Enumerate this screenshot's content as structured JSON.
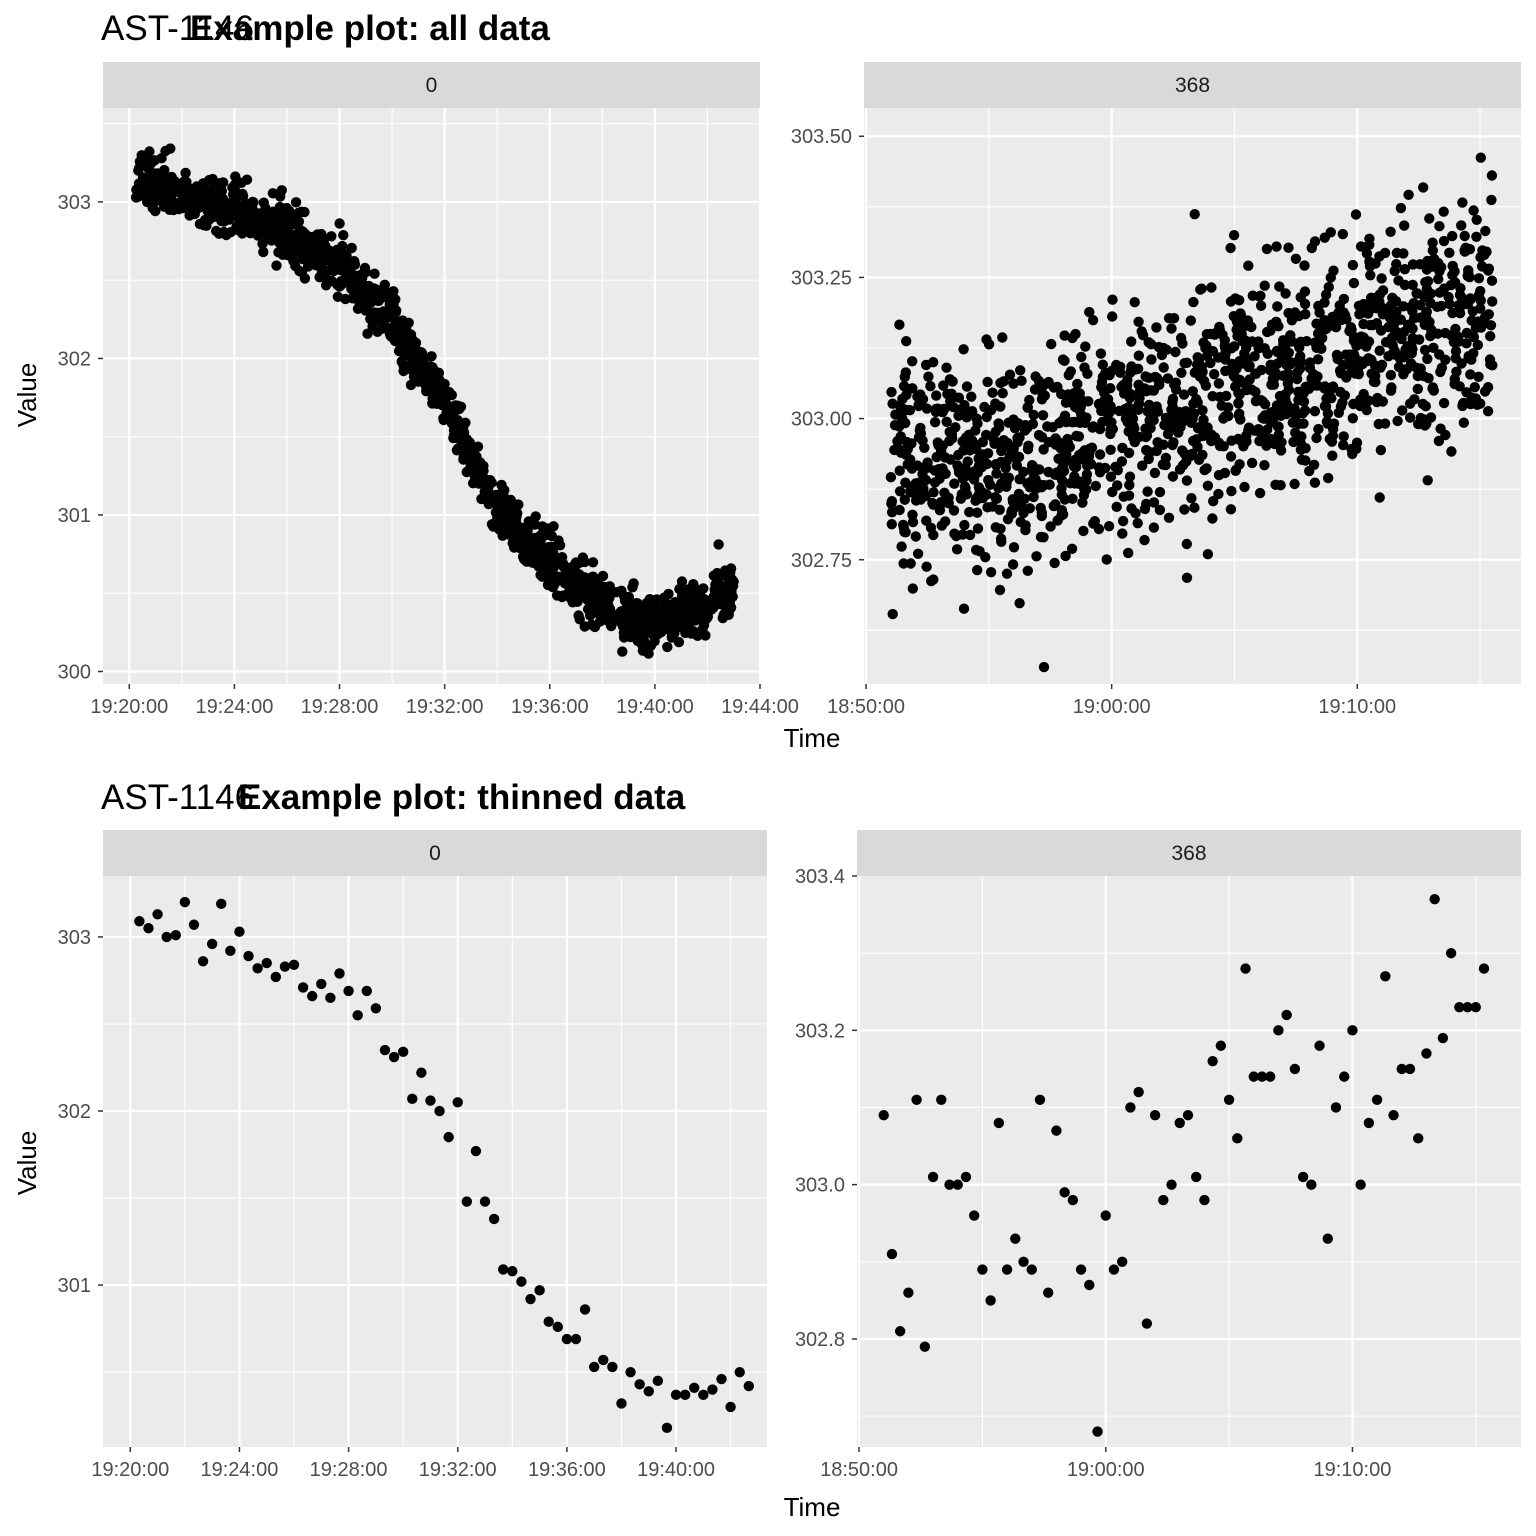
{
  "figures": [
    {
      "prefix": "AST-1146",
      "title": "Example plot: all data",
      "xlabel": "Time",
      "ylabel": "Value"
    },
    {
      "prefix": "AST-1146",
      "title": "Example plot: thinned data",
      "xlabel": "Time",
      "ylabel": "Value"
    }
  ],
  "chart_data": [
    {
      "type": "scatter",
      "figure": "Example plot: all data",
      "facet": "0",
      "x_unit": "time (HH:MM:SS)",
      "xlim": [
        "19:19:00",
        "19:44:00"
      ],
      "ylim": [
        299.92,
        303.6
      ],
      "x_ticks": [
        "19:20:00",
        "19:24:00",
        "19:28:00",
        "19:32:00",
        "19:36:00",
        "19:40:00",
        "19:44:00"
      ],
      "y_ticks": [
        "300",
        "301",
        "302",
        "303"
      ],
      "trend_points": [
        {
          "x": "19:20:15",
          "y": 303.15
        },
        {
          "x": "19:22:00",
          "y": 303.05
        },
        {
          "x": "19:24:00",
          "y": 302.95
        },
        {
          "x": "19:26:00",
          "y": 302.8
        },
        {
          "x": "19:28:00",
          "y": 302.6
        },
        {
          "x": "19:30:00",
          "y": 302.25
        },
        {
          "x": "19:31:00",
          "y": 302.0
        },
        {
          "x": "19:32:00",
          "y": 301.7
        },
        {
          "x": "19:33:00",
          "y": 301.35
        },
        {
          "x": "19:34:00",
          "y": 301.05
        },
        {
          "x": "19:35:00",
          "y": 300.85
        },
        {
          "x": "19:36:00",
          "y": 300.7
        },
        {
          "x": "19:38:00",
          "y": 300.45
        },
        {
          "x": "19:39:30",
          "y": 300.3
        },
        {
          "x": "19:41:00",
          "y": 300.35
        },
        {
          "x": "19:42:00",
          "y": 300.45
        },
        {
          "x": "19:43:00",
          "y": 300.55
        }
      ],
      "n_points": 1400,
      "grid": true
    },
    {
      "type": "scatter",
      "figure": "Example plot: all data",
      "facet": "368",
      "x_unit": "time (HH:MM:SS)",
      "xlim": [
        "18:49:55",
        "19:16:40"
      ],
      "ylim": [
        302.53,
        303.55
      ],
      "x_ticks": [
        "18:50:00",
        "19:00:00",
        "19:10:00"
      ],
      "y_ticks": [
        "302.75",
        "303.00",
        "303.25",
        "303.50"
      ],
      "trend_points": [
        {
          "x": "18:51:00",
          "y": 302.93
        },
        {
          "x": "18:57:00",
          "y": 302.92
        },
        {
          "x": "19:00:00",
          "y": 302.98
        },
        {
          "x": "19:05:00",
          "y": 303.05
        },
        {
          "x": "19:10:00",
          "y": 303.12
        },
        {
          "x": "19:15:30",
          "y": 303.2
        }
      ],
      "n_points": 1400,
      "grid": true
    },
    {
      "type": "scatter",
      "figure": "Example plot: thinned data",
      "facet": "0",
      "x_unit": "time (HH:MM:SS)",
      "xlim": [
        "19:19:00",
        "19:43:20"
      ],
      "ylim": [
        300.07,
        303.35
      ],
      "x_ticks": [
        "19:20:00",
        "19:24:00",
        "19:28:00",
        "19:32:00",
        "19:36:00",
        "19:40:00"
      ],
      "y_ticks": [
        "301",
        "302",
        "303"
      ],
      "points": [
        {
          "x": "19:20:20",
          "y": 303.09
        },
        {
          "x": "19:20:40",
          "y": 303.05
        },
        {
          "x": "19:21:00",
          "y": 303.13
        },
        {
          "x": "19:21:20",
          "y": 303.0
        },
        {
          "x": "19:21:40",
          "y": 303.01
        },
        {
          "x": "19:22:00",
          "y": 303.2
        },
        {
          "x": "19:22:20",
          "y": 303.07
        },
        {
          "x": "19:22:40",
          "y": 302.86
        },
        {
          "x": "19:23:00",
          "y": 302.96
        },
        {
          "x": "19:23:20",
          "y": 303.19
        },
        {
          "x": "19:23:40",
          "y": 302.92
        },
        {
          "x": "19:24:00",
          "y": 303.03
        },
        {
          "x": "19:24:20",
          "y": 302.89
        },
        {
          "x": "19:24:40",
          "y": 302.82
        },
        {
          "x": "19:25:00",
          "y": 302.85
        },
        {
          "x": "19:25:20",
          "y": 302.77
        },
        {
          "x": "19:25:40",
          "y": 302.83
        },
        {
          "x": "19:26:00",
          "y": 302.84
        },
        {
          "x": "19:26:20",
          "y": 302.71
        },
        {
          "x": "19:26:40",
          "y": 302.66
        },
        {
          "x": "19:27:00",
          "y": 302.73
        },
        {
          "x": "19:27:20",
          "y": 302.65
        },
        {
          "x": "19:27:40",
          "y": 302.79
        },
        {
          "x": "19:28:00",
          "y": 302.69
        },
        {
          "x": "19:28:20",
          "y": 302.55
        },
        {
          "x": "19:28:40",
          "y": 302.69
        },
        {
          "x": "19:29:00",
          "y": 302.59
        },
        {
          "x": "19:29:20",
          "y": 302.35
        },
        {
          "x": "19:29:40",
          "y": 302.31
        },
        {
          "x": "19:30:00",
          "y": 302.34
        },
        {
          "x": "19:30:20",
          "y": 302.07
        },
        {
          "x": "19:30:40",
          "y": 302.22
        },
        {
          "x": "19:31:00",
          "y": 302.06
        },
        {
          "x": "19:31:20",
          "y": 302.0
        },
        {
          "x": "19:31:40",
          "y": 301.85
        },
        {
          "x": "19:32:00",
          "y": 302.05
        },
        {
          "x": "19:32:20",
          "y": 301.48
        },
        {
          "x": "19:32:40",
          "y": 301.77
        },
        {
          "x": "19:33:00",
          "y": 301.48
        },
        {
          "x": "19:33:20",
          "y": 301.38
        },
        {
          "x": "19:33:40",
          "y": 301.09
        },
        {
          "x": "19:34:00",
          "y": 301.08
        },
        {
          "x": "19:34:20",
          "y": 301.02
        },
        {
          "x": "19:34:40",
          "y": 300.92
        },
        {
          "x": "19:35:00",
          "y": 300.97
        },
        {
          "x": "19:35:20",
          "y": 300.79
        },
        {
          "x": "19:35:40",
          "y": 300.76
        },
        {
          "x": "19:36:00",
          "y": 300.69
        },
        {
          "x": "19:36:20",
          "y": 300.69
        },
        {
          "x": "19:36:40",
          "y": 300.86
        },
        {
          "x": "19:37:00",
          "y": 300.53
        },
        {
          "x": "19:37:20",
          "y": 300.57
        },
        {
          "x": "19:37:40",
          "y": 300.53
        },
        {
          "x": "19:38:00",
          "y": 300.32
        },
        {
          "x": "19:38:20",
          "y": 300.5
        },
        {
          "x": "19:38:40",
          "y": 300.43
        },
        {
          "x": "19:39:00",
          "y": 300.39
        },
        {
          "x": "19:39:20",
          "y": 300.45
        },
        {
          "x": "19:39:40",
          "y": 300.18
        },
        {
          "x": "19:40:00",
          "y": 300.37
        },
        {
          "x": "19:40:20",
          "y": 300.37
        },
        {
          "x": "19:40:40",
          "y": 300.41
        },
        {
          "x": "19:41:00",
          "y": 300.37
        },
        {
          "x": "19:41:20",
          "y": 300.4
        },
        {
          "x": "19:41:40",
          "y": 300.46
        },
        {
          "x": "19:42:00",
          "y": 300.3
        },
        {
          "x": "19:42:20",
          "y": 300.5
        },
        {
          "x": "19:42:40",
          "y": 300.42
        }
      ],
      "grid": true
    },
    {
      "type": "scatter",
      "figure": "Example plot: thinned data",
      "facet": "368",
      "x_unit": "time (HH:MM:SS)",
      "xlim": [
        "18:49:55",
        "19:16:50"
      ],
      "ylim": [
        302.66,
        303.4
      ],
      "x_ticks": [
        "18:50:00",
        "19:00:00",
        "19:10:00"
      ],
      "y_ticks": [
        "302.8",
        "303.0",
        "303.2",
        "303.4"
      ],
      "points": [
        {
          "x": "18:51:00",
          "y": 303.09
        },
        {
          "x": "18:51:20",
          "y": 302.91
        },
        {
          "x": "18:51:40",
          "y": 302.81
        },
        {
          "x": "18:52:00",
          "y": 302.86
        },
        {
          "x": "18:52:20",
          "y": 303.11
        },
        {
          "x": "18:52:40",
          "y": 302.79
        },
        {
          "x": "18:53:00",
          "y": 303.01
        },
        {
          "x": "18:53:20",
          "y": 303.11
        },
        {
          "x": "18:53:40",
          "y": 303.0
        },
        {
          "x": "18:54:00",
          "y": 303.0
        },
        {
          "x": "18:54:20",
          "y": 303.01
        },
        {
          "x": "18:54:40",
          "y": 302.96
        },
        {
          "x": "18:55:00",
          "y": 302.89
        },
        {
          "x": "18:55:20",
          "y": 302.85
        },
        {
          "x": "18:55:40",
          "y": 303.08
        },
        {
          "x": "18:56:00",
          "y": 302.89
        },
        {
          "x": "18:56:20",
          "y": 302.93
        },
        {
          "x": "18:56:40",
          "y": 302.9
        },
        {
          "x": "18:57:00",
          "y": 302.89
        },
        {
          "x": "18:57:20",
          "y": 303.11
        },
        {
          "x": "18:57:40",
          "y": 302.86
        },
        {
          "x": "18:58:00",
          "y": 303.07
        },
        {
          "x": "18:58:20",
          "y": 302.99
        },
        {
          "x": "18:58:40",
          "y": 302.98
        },
        {
          "x": "18:59:00",
          "y": 302.89
        },
        {
          "x": "18:59:20",
          "y": 302.87
        },
        {
          "x": "18:59:40",
          "y": 302.68
        },
        {
          "x": "19:00:00",
          "y": 302.96
        },
        {
          "x": "19:00:20",
          "y": 302.89
        },
        {
          "x": "19:00:40",
          "y": 302.9
        },
        {
          "x": "19:01:00",
          "y": 303.1
        },
        {
          "x": "19:01:20",
          "y": 303.12
        },
        {
          "x": "19:01:40",
          "y": 302.82
        },
        {
          "x": "19:02:00",
          "y": 303.09
        },
        {
          "x": "19:02:20",
          "y": 302.98
        },
        {
          "x": "19:02:40",
          "y": 303.0
        },
        {
          "x": "19:03:00",
          "y": 303.08
        },
        {
          "x": "19:03:20",
          "y": 303.09
        },
        {
          "x": "19:03:40",
          "y": 303.01
        },
        {
          "x": "19:04:00",
          "y": 302.98
        },
        {
          "x": "19:04:20",
          "y": 303.16
        },
        {
          "x": "19:04:40",
          "y": 303.18
        },
        {
          "x": "19:05:00",
          "y": 303.11
        },
        {
          "x": "19:05:20",
          "y": 303.06
        },
        {
          "x": "19:05:40",
          "y": 303.28
        },
        {
          "x": "19:06:00",
          "y": 303.14
        },
        {
          "x": "19:06:20",
          "y": 303.14
        },
        {
          "x": "19:06:40",
          "y": 303.14
        },
        {
          "x": "19:07:00",
          "y": 303.2
        },
        {
          "x": "19:07:20",
          "y": 303.22
        },
        {
          "x": "19:07:40",
          "y": 303.15
        },
        {
          "x": "19:08:00",
          "y": 303.01
        },
        {
          "x": "19:08:20",
          "y": 303.0
        },
        {
          "x": "19:08:40",
          "y": 303.18
        },
        {
          "x": "19:09:00",
          "y": 302.93
        },
        {
          "x": "19:09:20",
          "y": 303.1
        },
        {
          "x": "19:09:40",
          "y": 303.14
        },
        {
          "x": "19:10:00",
          "y": 303.2
        },
        {
          "x": "19:10:20",
          "y": 303.0
        },
        {
          "x": "19:10:40",
          "y": 303.08
        },
        {
          "x": "19:11:00",
          "y": 303.11
        },
        {
          "x": "19:11:20",
          "y": 303.27
        },
        {
          "x": "19:11:40",
          "y": 303.09
        },
        {
          "x": "19:12:00",
          "y": 303.15
        },
        {
          "x": "19:12:20",
          "y": 303.15
        },
        {
          "x": "19:12:40",
          "y": 303.06
        },
        {
          "x": "19:13:00",
          "y": 303.17
        },
        {
          "x": "19:13:20",
          "y": 303.37
        },
        {
          "x": "19:13:40",
          "y": 303.19
        },
        {
          "x": "19:14:00",
          "y": 303.3
        },
        {
          "x": "19:14:20",
          "y": 303.23
        },
        {
          "x": "19:14:40",
          "y": 303.23
        },
        {
          "x": "19:15:00",
          "y": 303.23
        },
        {
          "x": "19:15:20",
          "y": 303.28
        }
      ],
      "grid": true
    }
  ]
}
